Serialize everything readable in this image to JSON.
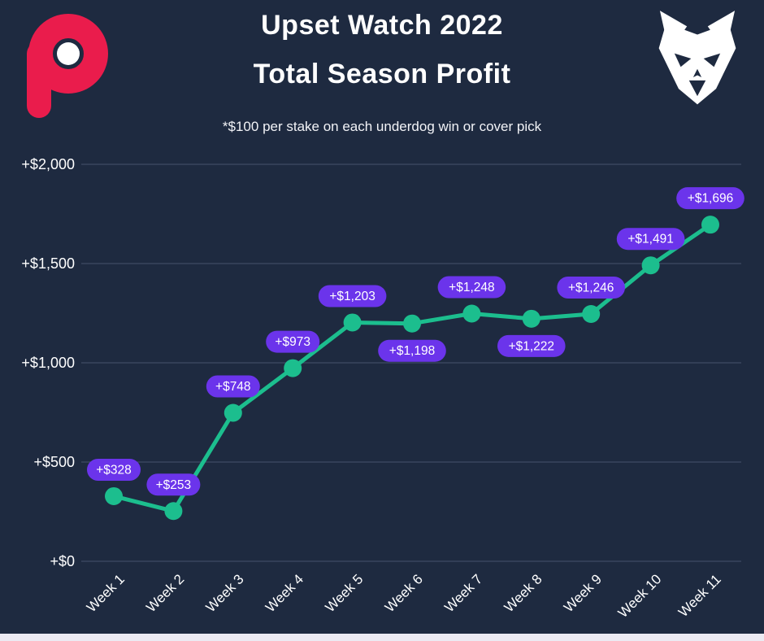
{
  "header": {
    "title_line1": "Upset Watch 2022",
    "title_line2": "Total Season Profit",
    "subtitle": "*$100 per stake on each underdog win or cover pick"
  },
  "branding": {
    "p_logo": "p-mark",
    "wolf_logo": "wolf-head"
  },
  "colors": {
    "background": "#1e2a40",
    "line": "#1cbe8e",
    "marker": "#1cbe8e",
    "label_pill": "#6b34eb",
    "label_text": "#ffffff",
    "grid": "#46526c",
    "axis_text": "#ffffff",
    "logo_pink": "#ea1c4c",
    "logo_white": "#ffffff"
  },
  "chart_data": {
    "type": "line",
    "title": "Upset Watch 2022 Total Season Profit",
    "subtitle": "*$100 per stake on each underdog win or cover pick",
    "categories": [
      "Week 1",
      "Week 2",
      "Week 3",
      "Week 4",
      "Week 5",
      "Week 6",
      "Week 7",
      "Week 8",
      "Week 9",
      "Week 10",
      "Week 11"
    ],
    "values": [
      328,
      253,
      748,
      973,
      1203,
      1198,
      1248,
      1222,
      1246,
      1491,
      1696
    ],
    "point_labels": [
      "+$328",
      "+$253",
      "+$748",
      "+$973",
      "+$1,203",
      "+$1,198",
      "+$1,248",
      "+$1,222",
      "+$1,246",
      "+$1,491",
      "+$1,696"
    ],
    "label_positions": [
      "above",
      "above",
      "above",
      "above",
      "above",
      "below",
      "above",
      "below",
      "above",
      "above",
      "above"
    ],
    "y_ticks": [
      0,
      500,
      1000,
      1500,
      2000
    ],
    "y_tick_labels": [
      "+$0",
      "+$500",
      "+$1,000",
      "+$1,500",
      "+$2,000"
    ],
    "ylim": [
      0,
      2000
    ],
    "xlabel": "",
    "ylabel": "",
    "grid": true,
    "legend_position": "none"
  }
}
